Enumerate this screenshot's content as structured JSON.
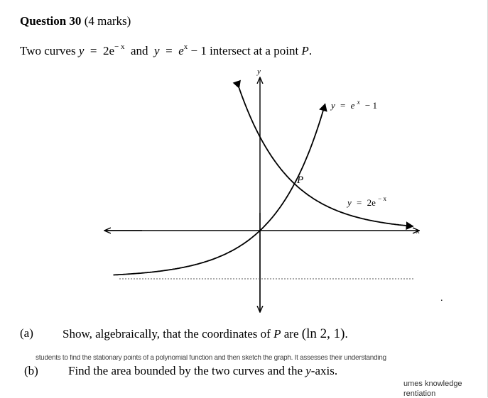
{
  "question": {
    "number_label": "Question 30",
    "marks": "(4 marks)"
  },
  "intro": {
    "text_start": "Two curves",
    "y1": "y",
    "eq1": "=",
    "base1": "2e",
    "exp1": "− x",
    "and": "and",
    "y2": "y",
    "eq2": "=",
    "base2": "e",
    "exp2": "x",
    "rest2": "− 1",
    "text_end": "intersect at a point",
    "point": "P",
    "period": "."
  },
  "graph": {
    "y_axis_label": "y",
    "x_axis_label": "x",
    "curve1_label": {
      "lhs": "y",
      "eq": "=",
      "base": "e",
      "exp": "x",
      "rest": "− 1"
    },
    "curve2_label": {
      "lhs": "y",
      "eq": "=",
      "base": "2e",
      "exp": "− x"
    },
    "point_label": "P"
  },
  "part_a": {
    "label": "(a)",
    "text_start": "Show, algebraically, that the coordinates of",
    "point": "P",
    "text_mid": "are",
    "coords": "(ln 2, 1)",
    "period": "."
  },
  "part_b": {
    "label": "(b)",
    "text_start": "Find the area bounded by the two curves and the",
    "axis": "y",
    "text_end": "-axis."
  },
  "overlay_fragment": "students to find the stationary points of a polynomial function and then sketch the graph.  It assesses their understanding",
  "side_note": {
    "line1": "umes knowledge",
    "line2": "rentiation"
  },
  "dot": "."
}
